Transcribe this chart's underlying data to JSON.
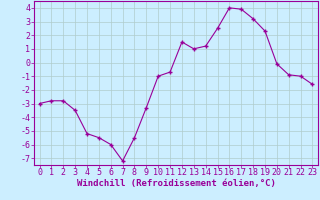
{
  "x": [
    0,
    1,
    2,
    3,
    4,
    5,
    6,
    7,
    8,
    9,
    10,
    11,
    12,
    13,
    14,
    15,
    16,
    17,
    18,
    19,
    20,
    21,
    22,
    23
  ],
  "y": [
    -3,
    -2.8,
    -2.8,
    -3.5,
    -5.2,
    -5.5,
    -6.0,
    -7.2,
    -5.5,
    -3.3,
    -1.0,
    -0.7,
    1.5,
    1.0,
    1.2,
    2.5,
    4.0,
    3.9,
    3.2,
    2.3,
    -0.1,
    -0.9,
    -1.0,
    -1.6
  ],
  "xlabel": "Windchill (Refroidissement éolien,°C)",
  "bg_color": "#cceeff",
  "line_color": "#990099",
  "marker_color": "#990099",
  "grid_color": "#b0cccc",
  "ylim": [
    -7.5,
    4.5
  ],
  "xlim": [
    -0.5,
    23.5
  ],
  "yticks": [
    -7,
    -6,
    -5,
    -4,
    -3,
    -2,
    -1,
    0,
    1,
    2,
    3,
    4
  ],
  "xticks": [
    0,
    1,
    2,
    3,
    4,
    5,
    6,
    7,
    8,
    9,
    10,
    11,
    12,
    13,
    14,
    15,
    16,
    17,
    18,
    19,
    20,
    21,
    22,
    23
  ],
  "tick_color": "#990099",
  "label_fontsize": 6.5,
  "tick_fontsize": 6.0,
  "spine_color": "#990099"
}
